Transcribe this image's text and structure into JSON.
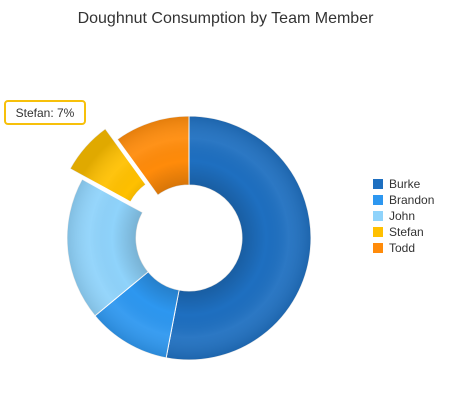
{
  "chart_data": {
    "type": "pie",
    "variant": "doughnut",
    "title": "Doughnut Consumption by Team Member",
    "categories": [
      "Burke",
      "Brandon",
      "John",
      "Stefan",
      "Todd"
    ],
    "values": [
      53,
      11,
      19,
      7,
      10
    ],
    "unit": "%",
    "colors": [
      "#1e6fc0",
      "#2d97f0",
      "#8fd3fb",
      "#ffc000",
      "#ff8b0a"
    ],
    "exploded": "Stefan",
    "tooltip": "Stefan: 7%",
    "legend_position": "right"
  }
}
